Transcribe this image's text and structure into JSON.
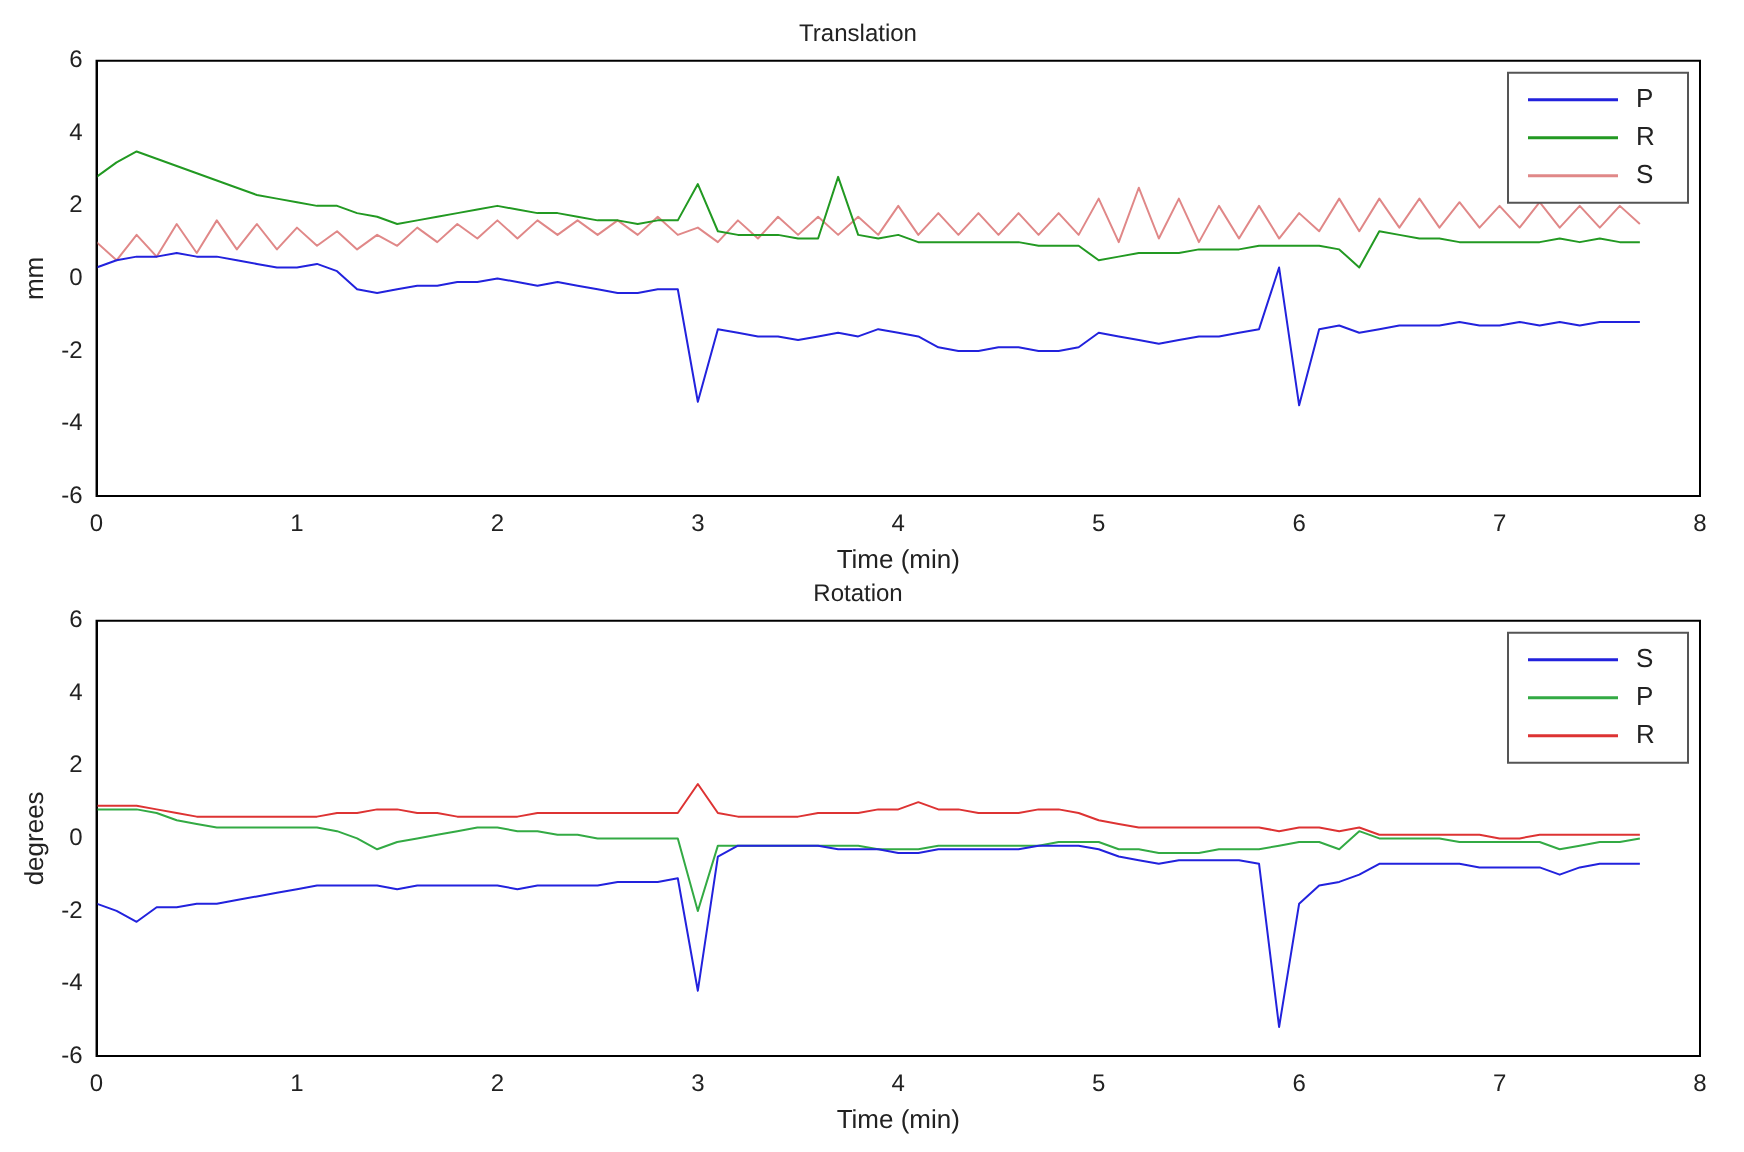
{
  "chart_data": [
    {
      "type": "line",
      "title": "Translation",
      "xlabel": "Time (min)",
      "ylabel": "mm",
      "xlim": [
        0,
        8
      ],
      "xticks": [
        0,
        1,
        2,
        3,
        4,
        5,
        6,
        7,
        8
      ],
      "ylim": [
        -6,
        6
      ],
      "yticks": [
        -6,
        -4,
        -2,
        0,
        2,
        4,
        6
      ],
      "legend": "top right",
      "marker": "none",
      "line_style": "solid",
      "x": [
        0,
        0.1,
        0.2,
        0.3,
        0.4,
        0.5,
        0.6,
        0.7,
        0.8,
        0.9,
        1,
        1.1,
        1.2,
        1.3,
        1.4,
        1.5,
        1.6,
        1.7,
        1.8,
        1.9,
        2,
        2.1,
        2.2,
        2.3,
        2.4,
        2.5,
        2.6,
        2.7,
        2.8,
        2.9,
        3,
        3.1,
        3.2,
        3.3,
        3.4,
        3.5,
        3.6,
        3.7,
        3.8,
        3.9,
        4,
        4.1,
        4.2,
        4.3,
        4.4,
        4.5,
        4.6,
        4.7,
        4.8,
        4.9,
        5,
        5.1,
        5.2,
        5.3,
        5.4,
        5.5,
        5.6,
        5.7,
        5.8,
        5.9,
        6,
        6.1,
        6.2,
        6.3,
        6.4,
        6.5,
        6.6,
        6.7,
        6.8,
        6.9,
        7,
        7.1,
        7.2,
        7.3,
        7.4,
        7.5,
        7.6,
        7.7
      ],
      "series": [
        {
          "name": "P",
          "color": "#2222dd",
          "values": [
            0.3,
            0.5,
            0.6,
            0.6,
            0.7,
            0.6,
            0.6,
            0.5,
            0.4,
            0.3,
            0.3,
            0.4,
            0.2,
            -0.3,
            -0.4,
            -0.3,
            -0.2,
            -0.2,
            -0.1,
            -0.1,
            0,
            -0.1,
            -0.2,
            -0.1,
            -0.2,
            -0.3,
            -0.4,
            -0.4,
            -0.3,
            -0.3,
            -3.4,
            -1.4,
            -1.5,
            -1.6,
            -1.6,
            -1.7,
            -1.6,
            -1.5,
            -1.6,
            -1.4,
            -1.5,
            -1.6,
            -1.9,
            -2,
            -2,
            -1.9,
            -1.9,
            -2,
            -2,
            -1.9,
            -1.5,
            -1.6,
            -1.7,
            -1.8,
            -1.7,
            -1.6,
            -1.6,
            -1.5,
            -1.4,
            0.3,
            -3.5,
            -1.4,
            -1.3,
            -1.5,
            -1.4,
            -1.3,
            -1.3,
            -1.3,
            -1.2,
            -1.3,
            -1.3,
            -1.2,
            -1.3,
            -1.2,
            -1.3,
            -1.2,
            -1.2,
            -1.2
          ]
        },
        {
          "name": "R",
          "color": "#229922",
          "values": [
            2.8,
            3.2,
            3.5,
            3.3,
            3.1,
            2.9,
            2.7,
            2.5,
            2.3,
            2.2,
            2.1,
            2,
            2,
            1.8,
            1.7,
            1.5,
            1.6,
            1.7,
            1.8,
            1.9,
            2,
            1.9,
            1.8,
            1.8,
            1.7,
            1.6,
            1.6,
            1.5,
            1.6,
            1.6,
            2.6,
            1.3,
            1.2,
            1.2,
            1.2,
            1.1,
            1.1,
            2.8,
            1.2,
            1.1,
            1.2,
            1,
            1,
            1,
            1,
            1,
            1,
            0.9,
            0.9,
            0.9,
            0.5,
            0.6,
            0.7,
            0.7,
            0.7,
            0.8,
            0.8,
            0.8,
            0.9,
            0.9,
            0.9,
            0.9,
            0.8,
            0.3,
            1.3,
            1.2,
            1.1,
            1.1,
            1,
            1,
            1,
            1,
            1,
            1.1,
            1,
            1.1,
            1,
            1
          ]
        },
        {
          "name": "S",
          "color": "#e08888",
          "values": [
            1,
            0.5,
            1.2,
            0.6,
            1.5,
            0.7,
            1.6,
            0.8,
            1.5,
            0.8,
            1.4,
            0.9,
            1.3,
            0.8,
            1.2,
            0.9,
            1.4,
            1,
            1.5,
            1.1,
            1.6,
            1.1,
            1.6,
            1.2,
            1.6,
            1.2,
            1.6,
            1.2,
            1.7,
            1.2,
            1.4,
            1,
            1.6,
            1.1,
            1.7,
            1.2,
            1.7,
            1.2,
            1.7,
            1.2,
            2,
            1.2,
            1.8,
            1.2,
            1.8,
            1.2,
            1.8,
            1.2,
            1.8,
            1.2,
            2.2,
            1,
            2.5,
            1.1,
            2.2,
            1,
            2,
            1.1,
            2,
            1.1,
            1.8,
            1.3,
            2.2,
            1.3,
            2.2,
            1.4,
            2.2,
            1.4,
            2.1,
            1.4,
            2,
            1.4,
            2.1,
            1.4,
            2,
            1.4,
            2,
            1.5
          ]
        }
      ]
    },
    {
      "type": "line",
      "title": "Rotation",
      "xlabel": "Time (min)",
      "ylabel": "degrees",
      "xlim": [
        0,
        8
      ],
      "xticks": [
        0,
        1,
        2,
        3,
        4,
        5,
        6,
        7,
        8
      ],
      "ylim": [
        -6,
        6
      ],
      "yticks": [
        -6,
        -4,
        -2,
        0,
        2,
        4,
        6
      ],
      "legend": "top right",
      "marker": "none",
      "line_style": "solid",
      "x": [
        0,
        0.1,
        0.2,
        0.3,
        0.4,
        0.5,
        0.6,
        0.7,
        0.8,
        0.9,
        1,
        1.1,
        1.2,
        1.3,
        1.4,
        1.5,
        1.6,
        1.7,
        1.8,
        1.9,
        2,
        2.1,
        2.2,
        2.3,
        2.4,
        2.5,
        2.6,
        2.7,
        2.8,
        2.9,
        3,
        3.1,
        3.2,
        3.3,
        3.4,
        3.5,
        3.6,
        3.7,
        3.8,
        3.9,
        4,
        4.1,
        4.2,
        4.3,
        4.4,
        4.5,
        4.6,
        4.7,
        4.8,
        4.9,
        5,
        5.1,
        5.2,
        5.3,
        5.4,
        5.5,
        5.6,
        5.7,
        5.8,
        5.9,
        6,
        6.1,
        6.2,
        6.3,
        6.4,
        6.5,
        6.6,
        6.7,
        6.8,
        6.9,
        7,
        7.1,
        7.2,
        7.3,
        7.4,
        7.5,
        7.6,
        7.7
      ],
      "series": [
        {
          "name": "S",
          "color": "#2222dd",
          "values": [
            -1.8,
            -2,
            -2.3,
            -1.9,
            -1.9,
            -1.8,
            -1.8,
            -1.7,
            -1.6,
            -1.5,
            -1.4,
            -1.3,
            -1.3,
            -1.3,
            -1.3,
            -1.4,
            -1.3,
            -1.3,
            -1.3,
            -1.3,
            -1.3,
            -1.4,
            -1.3,
            -1.3,
            -1.3,
            -1.3,
            -1.2,
            -1.2,
            -1.2,
            -1.1,
            -4.2,
            -0.5,
            -0.2,
            -0.2,
            -0.2,
            -0.2,
            -0.2,
            -0.3,
            -0.3,
            -0.3,
            -0.4,
            -0.4,
            -0.3,
            -0.3,
            -0.3,
            -0.3,
            -0.3,
            -0.2,
            -0.2,
            -0.2,
            -0.3,
            -0.5,
            -0.6,
            -0.7,
            -0.6,
            -0.6,
            -0.6,
            -0.6,
            -0.7,
            -5.2,
            -1.8,
            -1.3,
            -1.2,
            -1,
            -0.7,
            -0.7,
            -0.7,
            -0.7,
            -0.7,
            -0.8,
            -0.8,
            -0.8,
            -0.8,
            -1,
            -0.8,
            -0.7,
            -0.7,
            -0.7
          ]
        },
        {
          "name": "P",
          "color": "#33aa44",
          "values": [
            0.8,
            0.8,
            0.8,
            0.7,
            0.5,
            0.4,
            0.3,
            0.3,
            0.3,
            0.3,
            0.3,
            0.3,
            0.2,
            0,
            -0.3,
            -0.1,
            0,
            0.1,
            0.2,
            0.3,
            0.3,
            0.2,
            0.2,
            0.1,
            0.1,
            0,
            0,
            0,
            0,
            0,
            -2,
            -0.2,
            -0.2,
            -0.2,
            -0.2,
            -0.2,
            -0.2,
            -0.2,
            -0.2,
            -0.3,
            -0.3,
            -0.3,
            -0.2,
            -0.2,
            -0.2,
            -0.2,
            -0.2,
            -0.2,
            -0.1,
            -0.1,
            -0.1,
            -0.3,
            -0.3,
            -0.4,
            -0.4,
            -0.4,
            -0.3,
            -0.3,
            -0.3,
            -0.2,
            -0.1,
            -0.1,
            -0.3,
            0.2,
            0,
            0,
            0,
            0,
            -0.1,
            -0.1,
            -0.1,
            -0.1,
            -0.1,
            -0.3,
            -0.2,
            -0.1,
            -0.1,
            0
          ]
        },
        {
          "name": "R",
          "color": "#dd3333",
          "values": [
            0.9,
            0.9,
            0.9,
            0.8,
            0.7,
            0.6,
            0.6,
            0.6,
            0.6,
            0.6,
            0.6,
            0.6,
            0.7,
            0.7,
            0.8,
            0.8,
            0.7,
            0.7,
            0.6,
            0.6,
            0.6,
            0.6,
            0.7,
            0.7,
            0.7,
            0.7,
            0.7,
            0.7,
            0.7,
            0.7,
            1.5,
            0.7,
            0.6,
            0.6,
            0.6,
            0.6,
            0.7,
            0.7,
            0.7,
            0.8,
            0.8,
            1,
            0.8,
            0.8,
            0.7,
            0.7,
            0.7,
            0.8,
            0.8,
            0.7,
            0.5,
            0.4,
            0.3,
            0.3,
            0.3,
            0.3,
            0.3,
            0.3,
            0.3,
            0.2,
            0.3,
            0.3,
            0.2,
            0.3,
            0.1,
            0.1,
            0.1,
            0.1,
            0.1,
            0.1,
            0,
            0,
            0.1,
            0.1,
            0.1,
            0.1,
            0.1,
            0.1
          ]
        }
      ]
    }
  ]
}
